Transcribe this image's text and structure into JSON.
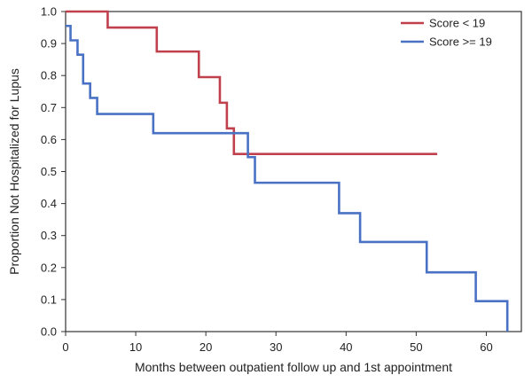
{
  "chart_data": {
    "type": "line",
    "title": "",
    "xlabel": "Months between outpatient follow up and 1st appointment",
    "ylabel": "Proportion Not Hospitalized for Lupus",
    "xlim": [
      0,
      65
    ],
    "ylim": [
      0,
      1.0
    ],
    "xticks": [
      "0",
      "10",
      "20",
      "30",
      "40",
      "50",
      "60"
    ],
    "yticks": [
      "0.0",
      "0.1",
      "0.2",
      "0.3",
      "0.4",
      "0.5",
      "0.6",
      "0.7",
      "0.8",
      "0.9",
      "1.0"
    ],
    "grid": false,
    "legend_position": "top-right",
    "step": true,
    "series": [
      {
        "name": "Score < 19",
        "color": "#c0404e",
        "x": [
          0,
          6,
          13,
          19,
          22,
          23,
          24,
          53
        ],
        "y": [
          1.0,
          0.95,
          0.875,
          0.795,
          0.715,
          0.635,
          0.555,
          0.555
        ]
      },
      {
        "name": "Score >= 19",
        "color": "#4a72c4",
        "x": [
          0,
          0.7,
          1.7,
          2.5,
          3.5,
          4.5,
          5.5,
          12.5,
          26,
          27,
          39,
          42,
          51.5,
          58.5,
          63
        ],
        "y": [
          0.955,
          0.91,
          0.865,
          0.775,
          0.73,
          0.68,
          0.68,
          0.62,
          0.545,
          0.465,
          0.37,
          0.28,
          0.185,
          0.095,
          0.0
        ]
      }
    ]
  }
}
